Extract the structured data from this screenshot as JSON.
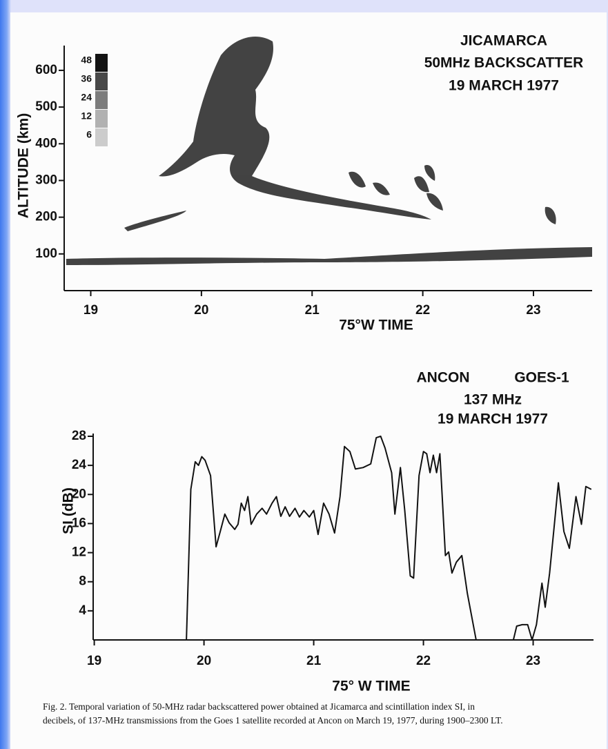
{
  "chart_data": [
    {
      "type": "image",
      "title": [
        "JICAMARCA",
        "50MHz BACKSCATTER",
        "19 MARCH 1977"
      ],
      "x_label": "75°W TIME",
      "y_label": "ALTITUDE (km)",
      "xlim": [
        18.76,
        23.53
      ],
      "xticks": [
        19,
        20,
        21,
        22,
        23
      ],
      "ylim": [
        0,
        660
      ],
      "yticks": [
        100,
        200,
        300,
        400,
        500,
        600
      ],
      "colorbar": [
        48,
        36,
        24,
        12,
        6
      ]
    },
    {
      "type": "line",
      "title": [
        "137 MHz",
        "19 MARCH 1977"
      ],
      "annotations": [
        "ANCON",
        "GOES-1"
      ],
      "x_label": "75° W TIME",
      "y_label": "SI (dB)",
      "xlim": [
        18.99,
        23.55
      ],
      "xticks": [
        19,
        20,
        21,
        22,
        23
      ],
      "ylim": [
        0,
        28
      ],
      "yticks": [
        4,
        8,
        12,
        16,
        20,
        24,
        28
      ],
      "color": "#111111",
      "x": [
        19.84,
        19.88,
        19.92,
        19.95,
        19.98,
        20.01,
        20.06,
        20.11,
        20.15,
        20.19,
        20.23,
        20.28,
        20.31,
        20.34,
        20.37,
        20.4,
        20.43,
        20.48,
        20.53,
        20.57,
        20.62,
        20.66,
        20.7,
        20.74,
        20.78,
        20.83,
        20.87,
        20.91,
        20.96,
        21.0,
        21.04,
        21.09,
        21.14,
        21.19,
        21.24,
        21.28,
        21.33,
        21.38,
        21.45,
        21.52,
        21.57,
        21.61,
        21.65,
        21.71,
        21.74,
        21.79,
        21.83,
        21.88,
        21.91,
        21.96,
        22.0,
        22.03,
        22.06,
        22.09,
        22.12,
        22.15,
        22.2,
        22.23,
        22.26,
        22.3,
        22.35,
        22.4,
        22.48,
        22.82,
        22.85,
        22.9,
        22.95,
        22.99,
        23.03,
        23.08,
        23.11,
        23.15,
        23.19,
        23.23,
        23.28,
        23.33,
        23.39,
        23.44,
        23.48,
        23.53
      ],
      "values": [
        0,
        20.7,
        24.5,
        24,
        25.2,
        24.7,
        22.6,
        12.8,
        15,
        17.3,
        16.1,
        15.2,
        15.9,
        18.8,
        17.8,
        19.7,
        15.9,
        17.3,
        18.1,
        17.3,
        18.8,
        19.7,
        17,
        18.3,
        17,
        18.1,
        16.9,
        17.8,
        16.9,
        17.8,
        14.5,
        18.8,
        17.3,
        14.7,
        19.7,
        26.6,
        25.9,
        23.5,
        23.7,
        24.2,
        27.8,
        28,
        26.4,
        23,
        17.3,
        23.7,
        17.8,
        8.8,
        8.5,
        22.6,
        25.9,
        25.6,
        23,
        25.4,
        23,
        25.6,
        11.6,
        12.1,
        9.2,
        10.7,
        11.6,
        6.4,
        0,
        0,
        1.9,
        2.1,
        2.1,
        0,
        2.1,
        7.8,
        4.5,
        9.2,
        15.4,
        21.6,
        14.9,
        12.6,
        19.7,
        15.9,
        21.1,
        20.7
      ]
    }
  ],
  "caption": [
    "Fig. 2.  Temporal variation of 50-MHz radar backscattered power obtained at Jicamarca and scintillation index SI, in",
    "decibels, of 137-MHz transmissions from the Goes 1 satellite recorded at Ancon on March 19, 1977, during 1900–2300 LT."
  ]
}
